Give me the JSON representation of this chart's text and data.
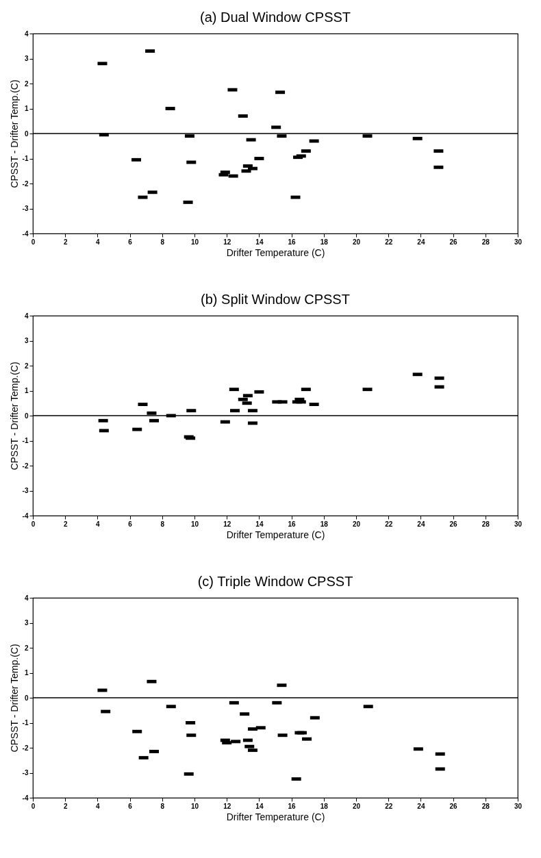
{
  "chart_data": [
    {
      "type": "scatter",
      "title": "(a) Dual Window CPSST",
      "xlabel": "Drifter Temperature (C)",
      "ylabel": "CPSST - Drifter Temp.(C)",
      "xlim": [
        0,
        30
      ],
      "ylim": [
        -4,
        4
      ],
      "xticks": [
        0,
        2,
        4,
        6,
        8,
        10,
        12,
        14,
        16,
        18,
        20,
        22,
        24,
        26,
        28,
        30
      ],
      "yticks": [
        -4,
        -3,
        -2,
        -1,
        0,
        1,
        2,
        3,
        4
      ],
      "grid": false,
      "legend": false,
      "marker": "square",
      "ref_lines": [
        {
          "axis": "y",
          "value": 0
        }
      ],
      "series": [
        {
          "color": "#000000",
          "x": [
            4.3,
            4.4,
            7.25,
            6.4,
            6.8,
            7.4,
            8.5,
            9.7,
            9.8,
            9.6,
            11.8,
            11.9,
            12.4,
            12.35,
            13.0,
            13.2,
            13.3,
            13.6,
            13.5,
            14.0,
            15.05,
            15.3,
            15.4,
            16.25,
            16.4,
            16.6,
            16.9,
            17.4,
            20.7,
            23.8,
            25.1,
            25.1
          ],
          "values": [
            2.8,
            -0.05,
            3.3,
            -1.05,
            -2.55,
            -2.35,
            1.0,
            -0.1,
            -1.15,
            -2.75,
            -1.65,
            -1.55,
            -1.7,
            1.75,
            0.7,
            -1.5,
            -1.3,
            -1.4,
            -0.25,
            -1.0,
            0.25,
            1.65,
            -0.1,
            -2.55,
            -0.95,
            -0.9,
            -0.7,
            -0.3,
            -0.1,
            -0.2,
            -0.7,
            -1.35
          ]
        }
      ]
    },
    {
      "type": "scatter",
      "title": "(b) Split Window CPSST",
      "xlabel": "Drifter Temperature (C)",
      "ylabel": "CPSST - Drifter Temp.(C)",
      "xlim": [
        0,
        30
      ],
      "ylim": [
        -4,
        4
      ],
      "xticks": [
        0,
        2,
        4,
        6,
        8,
        10,
        12,
        14,
        16,
        18,
        20,
        22,
        24,
        26,
        28,
        30
      ],
      "yticks": [
        -4,
        -3,
        -2,
        -1,
        0,
        1,
        2,
        3,
        4
      ],
      "grid": false,
      "legend": false,
      "marker": "square",
      "ref_lines": [
        {
          "axis": "y",
          "value": 0
        }
      ],
      "series": [
        {
          "color": "#000000",
          "x": [
            4.35,
            4.4,
            6.45,
            6.8,
            7.35,
            7.5,
            8.55,
            9.8,
            9.65,
            9.75,
            11.9,
            12.45,
            12.5,
            13.0,
            13.3,
            13.25,
            13.6,
            13.6,
            14.0,
            15.1,
            15.45,
            16.35,
            16.5,
            16.6,
            16.9,
            17.4,
            20.7,
            23.8,
            25.15,
            25.15
          ],
          "values": [
            -0.2,
            -0.6,
            -0.55,
            0.45,
            0.1,
            -0.2,
            0.0,
            0.2,
            -0.85,
            -0.9,
            -0.25,
            1.05,
            0.2,
            0.65,
            0.8,
            0.5,
            0.2,
            -0.3,
            0.95,
            0.55,
            0.55,
            0.55,
            0.65,
            0.55,
            1.05,
            0.45,
            1.05,
            1.65,
            1.5,
            1.15
          ]
        }
      ]
    },
    {
      "type": "scatter",
      "title": "(c) Triple Window CPSST",
      "xlabel": "Drifter Temperature (C)",
      "ylabel": "CPSST - Drifter Temp.(C)",
      "xlim": [
        0,
        30
      ],
      "ylim": [
        -4,
        4
      ],
      "xticks": [
        0,
        2,
        4,
        6,
        8,
        10,
        12,
        14,
        16,
        18,
        20,
        22,
        24,
        26,
        28,
        30
      ],
      "yticks": [
        -4,
        -3,
        -2,
        -1,
        0,
        1,
        2,
        3,
        4
      ],
      "grid": false,
      "legend": false,
      "marker": "square",
      "ref_lines": [
        {
          "axis": "y",
          "value": 0
        }
      ],
      "series": [
        {
          "color": "#000000",
          "x": [
            4.3,
            4.5,
            7.35,
            6.45,
            6.85,
            7.5,
            8.55,
            9.75,
            9.8,
            9.65,
            11.9,
            12.0,
            12.55,
            12.45,
            13.1,
            13.3,
            13.4,
            13.6,
            13.6,
            14.1,
            15.1,
            15.4,
            15.45,
            16.3,
            16.5,
            16.65,
            16.95,
            17.45,
            20.75,
            23.85,
            25.2,
            25.2
          ],
          "values": [
            0.3,
            -0.55,
            0.65,
            -1.35,
            -2.4,
            -2.15,
            -0.35,
            -1.0,
            -1.5,
            -3.05,
            -1.7,
            -1.8,
            -1.75,
            -0.2,
            -0.65,
            -1.7,
            -1.95,
            -2.1,
            -1.25,
            -1.2,
            -0.2,
            0.5,
            -1.5,
            -3.25,
            -1.4,
            -1.4,
            -1.65,
            -0.8,
            -0.35,
            -2.05,
            -2.25,
            -2.85
          ]
        }
      ]
    }
  ]
}
